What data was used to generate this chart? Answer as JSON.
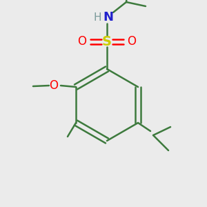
{
  "background_color": "#ebebeb",
  "bond_color": "#3d7a3d",
  "bond_width": 1.8,
  "atom_colors": {
    "S": "#cccc00",
    "O": "#ff0000",
    "N": "#2222cc",
    "H": "#7a9a9a",
    "C": "#3d7a3d"
  },
  "figsize": [
    3.0,
    3.0
  ],
  "dpi": 100
}
